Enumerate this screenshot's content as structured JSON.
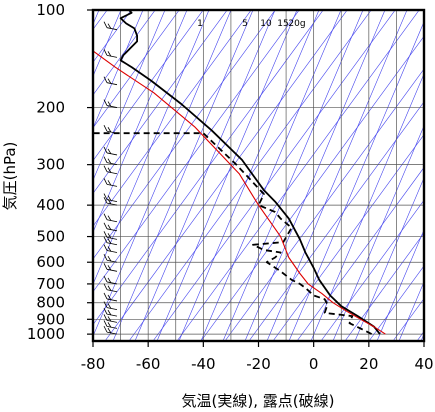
{
  "chart_data": {
    "type": "line",
    "xlabel": "気温(実線), 露点(破線)",
    "ylabel": "気圧(hPa)",
    "x_ticks": [
      -80,
      -60,
      -40,
      -20,
      0,
      20,
      40
    ],
    "y_ticks": [
      100,
      200,
      300,
      400,
      500,
      600,
      700,
      800,
      900,
      1000
    ],
    "xlim": [
      -80,
      40
    ],
    "ylim": [
      1050,
      100
    ],
    "y_scale": "log",
    "mixing_ratio_labels": [
      "1",
      "5",
      "10",
      "15",
      "20g"
    ],
    "series": [
      {
        "style": "solid",
        "color": "#000000",
        "points": [
          [
            24,
            1000
          ],
          [
            22,
            950
          ],
          [
            20,
            925
          ],
          [
            16,
            880
          ],
          [
            10,
            820
          ],
          [
            6,
            760
          ],
          [
            2,
            680
          ],
          [
            0,
            625
          ],
          [
            -3,
            560
          ],
          [
            -5,
            510
          ],
          [
            -9,
            440
          ],
          [
            -14,
            390
          ],
          [
            -18,
            360
          ],
          [
            -26,
            290
          ],
          [
            -37,
            235
          ],
          [
            -48,
            195
          ],
          [
            -59,
            165
          ],
          [
            -66,
            150
          ],
          [
            -70,
            143
          ],
          [
            -69,
            138
          ],
          [
            -66,
            130
          ],
          [
            -64,
            125
          ],
          [
            -64,
            120
          ],
          [
            -65,
            114
          ],
          [
            -68,
            110
          ],
          [
            -70,
            106
          ],
          [
            -66,
            102
          ],
          [
            -67,
            100
          ]
        ]
      },
      {
        "style": "dashed",
        "color": "#000000",
        "points": [
          [
            21,
            1000
          ],
          [
            18,
            970
          ],
          [
            13,
            925
          ],
          [
            14,
            880
          ],
          [
            4,
            860
          ],
          [
            5,
            810
          ],
          [
            4,
            780
          ],
          [
            0,
            760
          ],
          [
            -3,
            720
          ],
          [
            -5,
            700
          ],
          [
            -8,
            680
          ],
          [
            -12,
            640
          ],
          [
            -17,
            600
          ],
          [
            -14,
            580
          ],
          [
            -12,
            560
          ],
          [
            -18,
            550
          ],
          [
            -22,
            530
          ],
          [
            -11,
            520
          ],
          [
            -8,
            470
          ],
          [
            -12,
            440
          ],
          [
            -14,
            420
          ],
          [
            -20,
            400
          ],
          [
            -18,
            370
          ],
          [
            -28,
            300
          ],
          [
            -40,
            240
          ],
          [
            -80,
            240
          ]
        ]
      },
      {
        "style": "solid",
        "color": "#dd0000",
        "points": [
          [
            26,
            1000
          ],
          [
            22,
            950
          ],
          [
            17,
            900
          ],
          [
            12,
            850
          ],
          [
            7,
            800
          ],
          [
            3,
            750
          ],
          [
            -2,
            700
          ],
          [
            -5,
            650
          ],
          [
            -9,
            580
          ],
          [
            -12,
            500
          ],
          [
            -20,
            400
          ],
          [
            -27,
            320
          ],
          [
            -43,
            230
          ],
          [
            -58,
            180
          ],
          [
            -72,
            150
          ],
          [
            -82,
            130
          ]
        ]
      }
    ],
    "wind_barbs_pressures": [
      115,
      140,
      170,
      200,
      240,
      280,
      300,
      320,
      350,
      390,
      400,
      450,
      480,
      510,
      530,
      560,
      600,
      640,
      700,
      740,
      790,
      840,
      880,
      920,
      960,
      1000
    ]
  }
}
